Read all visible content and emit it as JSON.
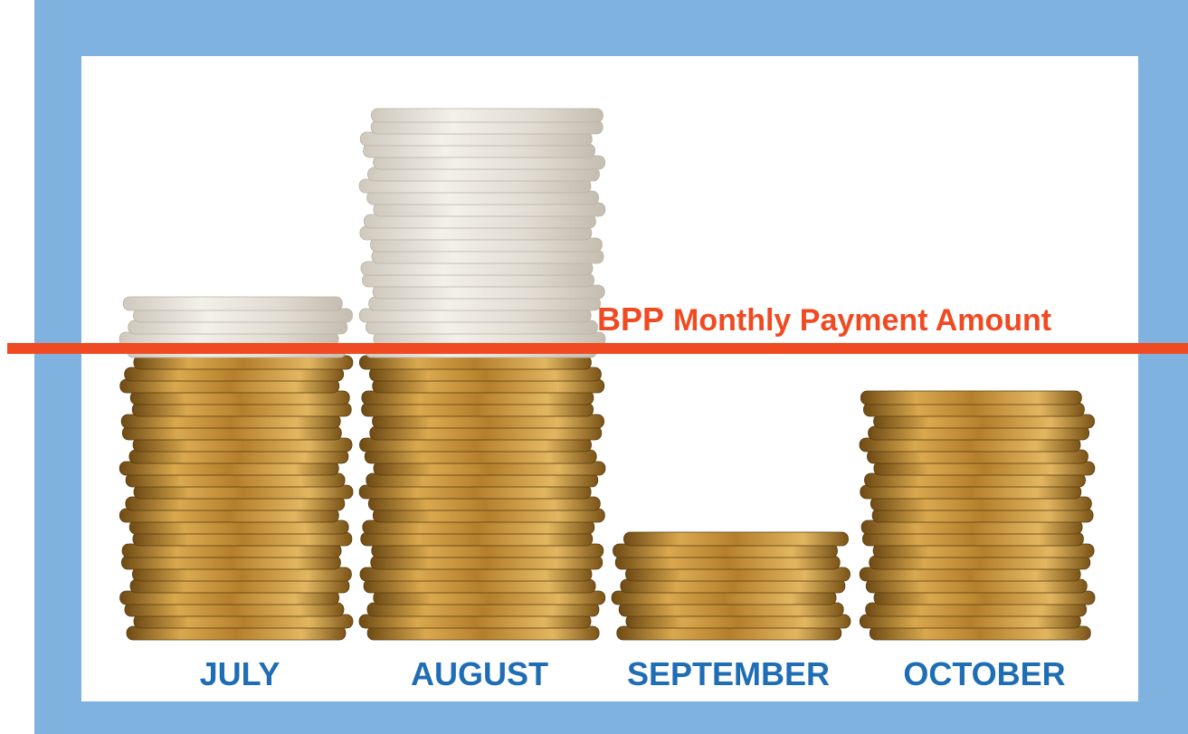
{
  "line_label": {
    "highlight": "BPP",
    "text": "Monthly Payment Amount"
  },
  "months": [
    "JULY",
    "AUGUST",
    "SEPTEMBER",
    "OCTOBER"
  ]
}
